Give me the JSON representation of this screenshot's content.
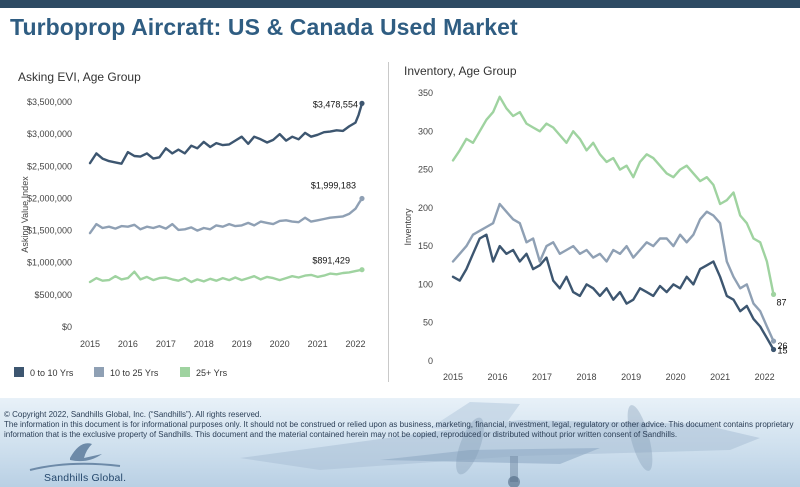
{
  "header": {
    "title": "Turboprop Aircraft:  US & Canada Used Market"
  },
  "left_panel": {
    "title": "Asking EVI, Age Group"
  },
  "right_panel": {
    "title": "Inventory, Age Group"
  },
  "legend": [
    {
      "label": "0 to 10 Yrs",
      "color": "#3d5670"
    },
    {
      "label": "10 to 25 Yrs",
      "color": "#8fa0b4"
    },
    {
      "label": "25+ Yrs",
      "color": "#9fd3a0"
    }
  ],
  "footer": {
    "copyright": "© Copyright 2022, Sandhills Global, Inc. (“Sandhills”). All rights reserved.",
    "disclaimer": "The information in this document is for informational purposes only.  It should not be construed or relied upon as business, marketing, financial, investment, legal, regulatory or other advice. This document contains proprietary information that is the exclusive property of Sandhills. This document and the material contained herein may not be copied, reproduced or distributed without prior written consent of Sandhills.",
    "brand": "Sandhills Global."
  },
  "chart_data": [
    {
      "type": "line",
      "title": "Asking EVI, Age Group",
      "xlabel": "",
      "ylabel": "Asking Value Index",
      "xlim": [
        2015,
        2022.25
      ],
      "ylim": [
        0,
        3500000
      ],
      "x_ticks": [
        "2015",
        "2016",
        "2017",
        "2018",
        "2019",
        "2020",
        "2021",
        "2022"
      ],
      "y_ticks": [
        "$0",
        "$500,000",
        "$1,000,000",
        "$1,500,000",
        "$2,000,000",
        "$2,500,000",
        "$3,000,000",
        "$3,500,000"
      ],
      "y_tick_values": [
        0,
        500000,
        1000000,
        1500000,
        2000000,
        2500000,
        3000000,
        3500000
      ],
      "grid": false,
      "legend_position": "bottom-left",
      "series": [
        {
          "name": "0 to 10 Yrs",
          "color": "#3d5670",
          "x": [
            2015.0,
            2015.17,
            2015.33,
            2015.5,
            2015.67,
            2015.83,
            2016.0,
            2016.17,
            2016.33,
            2016.5,
            2016.67,
            2016.83,
            2017.0,
            2017.17,
            2017.33,
            2017.5,
            2017.67,
            2017.83,
            2018.0,
            2018.17,
            2018.33,
            2018.5,
            2018.67,
            2018.83,
            2019.0,
            2019.17,
            2019.33,
            2019.5,
            2019.67,
            2019.83,
            2020.0,
            2020.17,
            2020.33,
            2020.5,
            2020.67,
            2020.83,
            2021.0,
            2021.17,
            2021.33,
            2021.5,
            2021.67,
            2021.83,
            2022.0,
            2022.08,
            2022.17
          ],
          "values": [
            2550000,
            2700000,
            2620000,
            2580000,
            2560000,
            2540000,
            2720000,
            2660000,
            2650000,
            2700000,
            2620000,
            2640000,
            2780000,
            2700000,
            2760000,
            2700000,
            2820000,
            2780000,
            2880000,
            2800000,
            2860000,
            2830000,
            2840000,
            2900000,
            2960000,
            2850000,
            2960000,
            2920000,
            2870000,
            2910000,
            3000000,
            2900000,
            2960000,
            2920000,
            3020000,
            2960000,
            2990000,
            3030000,
            3040000,
            3060000,
            3050000,
            3120000,
            3180000,
            3300000,
            3478554
          ],
          "end_label": "$3,478,554"
        },
        {
          "name": "10 to 25 Yrs",
          "color": "#8fa0b4",
          "x": [
            2015.0,
            2015.17,
            2015.33,
            2015.5,
            2015.67,
            2015.83,
            2016.0,
            2016.17,
            2016.33,
            2016.5,
            2016.67,
            2016.83,
            2017.0,
            2017.17,
            2017.33,
            2017.5,
            2017.67,
            2017.83,
            2018.0,
            2018.17,
            2018.33,
            2018.5,
            2018.67,
            2018.83,
            2019.0,
            2019.17,
            2019.33,
            2019.5,
            2019.67,
            2019.83,
            2020.0,
            2020.17,
            2020.33,
            2020.5,
            2020.67,
            2020.83,
            2021.0,
            2021.17,
            2021.33,
            2021.5,
            2021.67,
            2021.83,
            2022.0,
            2022.08,
            2022.17
          ],
          "values": [
            1460000,
            1600000,
            1540000,
            1560000,
            1530000,
            1570000,
            1560000,
            1590000,
            1520000,
            1560000,
            1540000,
            1570000,
            1530000,
            1600000,
            1510000,
            1520000,
            1550000,
            1500000,
            1540000,
            1520000,
            1580000,
            1560000,
            1600000,
            1570000,
            1580000,
            1620000,
            1580000,
            1640000,
            1620000,
            1600000,
            1650000,
            1660000,
            1640000,
            1630000,
            1700000,
            1640000,
            1660000,
            1680000,
            1700000,
            1710000,
            1720000,
            1760000,
            1840000,
            1920000,
            1999183
          ],
          "end_label": "$1,999,183"
        },
        {
          "name": "25+ Yrs",
          "color": "#9fd3a0",
          "x": [
            2015.0,
            2015.17,
            2015.33,
            2015.5,
            2015.67,
            2015.83,
            2016.0,
            2016.17,
            2016.33,
            2016.5,
            2016.67,
            2016.83,
            2017.0,
            2017.17,
            2017.33,
            2017.5,
            2017.67,
            2017.83,
            2018.0,
            2018.17,
            2018.33,
            2018.5,
            2018.67,
            2018.83,
            2019.0,
            2019.17,
            2019.33,
            2019.5,
            2019.67,
            2019.83,
            2020.0,
            2020.17,
            2020.33,
            2020.5,
            2020.67,
            2020.83,
            2021.0,
            2021.17,
            2021.33,
            2021.5,
            2021.67,
            2021.83,
            2022.0,
            2022.08,
            2022.17
          ],
          "values": [
            700000,
            760000,
            720000,
            730000,
            790000,
            740000,
            760000,
            860000,
            740000,
            780000,
            730000,
            760000,
            770000,
            740000,
            720000,
            760000,
            700000,
            740000,
            710000,
            750000,
            720000,
            760000,
            730000,
            770000,
            730000,
            760000,
            790000,
            740000,
            780000,
            760000,
            730000,
            760000,
            790000,
            770000,
            800000,
            810000,
            780000,
            800000,
            830000,
            820000,
            840000,
            850000,
            870000,
            880000,
            891429
          ],
          "end_label": "$891,429"
        }
      ]
    },
    {
      "type": "line",
      "title": "Inventory, Age Group",
      "xlabel": "",
      "ylabel": "Inventory",
      "xlim": [
        2015,
        2022.3
      ],
      "ylim": [
        0,
        350
      ],
      "x_ticks": [
        "2015",
        "2016",
        "2017",
        "2018",
        "2019",
        "2020",
        "2021",
        "2022"
      ],
      "y_ticks": [
        "0",
        "50",
        "100",
        "150",
        "200",
        "250",
        "300",
        "350"
      ],
      "y_tick_values": [
        0,
        50,
        100,
        150,
        200,
        250,
        300,
        350
      ],
      "grid": false,
      "series": [
        {
          "name": "0 to 10 Yrs",
          "color": "#3d5670",
          "x": [
            2015.0,
            2015.15,
            2015.3,
            2015.45,
            2015.6,
            2015.75,
            2015.9,
            2016.05,
            2016.2,
            2016.35,
            2016.5,
            2016.65,
            2016.8,
            2016.95,
            2017.1,
            2017.25,
            2017.4,
            2017.55,
            2017.7,
            2017.85,
            2018.0,
            2018.15,
            2018.3,
            2018.45,
            2018.6,
            2018.75,
            2018.9,
            2019.05,
            2019.2,
            2019.35,
            2019.5,
            2019.65,
            2019.8,
            2019.95,
            2020.1,
            2020.25,
            2020.4,
            2020.55,
            2020.7,
            2020.85,
            2021.0,
            2021.15,
            2021.3,
            2021.45,
            2021.6,
            2021.75,
            2021.9,
            2022.05,
            2022.2
          ],
          "values": [
            110,
            105,
            120,
            140,
            160,
            165,
            130,
            150,
            140,
            145,
            130,
            140,
            120,
            125,
            135,
            105,
            95,
            110,
            90,
            85,
            100,
            95,
            85,
            95,
            80,
            90,
            75,
            80,
            95,
            90,
            85,
            98,
            90,
            100,
            95,
            110,
            100,
            120,
            125,
            130,
            110,
            85,
            80,
            65,
            72,
            55,
            45,
            30,
            15
          ],
          "end_label": "15"
        },
        {
          "name": "10 to 25 Yrs",
          "color": "#8fa0b4",
          "x": [
            2015.0,
            2015.15,
            2015.3,
            2015.45,
            2015.6,
            2015.75,
            2015.9,
            2016.05,
            2016.2,
            2016.35,
            2016.5,
            2016.65,
            2016.8,
            2016.95,
            2017.1,
            2017.25,
            2017.4,
            2017.55,
            2017.7,
            2017.85,
            2018.0,
            2018.15,
            2018.3,
            2018.45,
            2018.6,
            2018.75,
            2018.9,
            2019.05,
            2019.2,
            2019.35,
            2019.5,
            2019.65,
            2019.8,
            2019.95,
            2020.1,
            2020.25,
            2020.4,
            2020.55,
            2020.7,
            2020.85,
            2021.0,
            2021.15,
            2021.3,
            2021.45,
            2021.6,
            2021.75,
            2021.9,
            2022.05,
            2022.2
          ],
          "values": [
            130,
            140,
            150,
            165,
            170,
            175,
            180,
            205,
            195,
            185,
            180,
            155,
            160,
            130,
            150,
            155,
            140,
            145,
            150,
            140,
            145,
            135,
            140,
            130,
            145,
            140,
            150,
            135,
            145,
            155,
            150,
            160,
            160,
            150,
            165,
            155,
            165,
            185,
            195,
            190,
            180,
            130,
            110,
            95,
            100,
            75,
            65,
            45,
            26
          ],
          "end_label": "26"
        },
        {
          "name": "25+ Yrs",
          "color": "#9fd3a0",
          "x": [
            2015.0,
            2015.15,
            2015.3,
            2015.45,
            2015.6,
            2015.75,
            2015.9,
            2016.05,
            2016.2,
            2016.35,
            2016.5,
            2016.65,
            2016.8,
            2016.95,
            2017.1,
            2017.25,
            2017.4,
            2017.55,
            2017.7,
            2017.85,
            2018.0,
            2018.15,
            2018.3,
            2018.45,
            2018.6,
            2018.75,
            2018.9,
            2019.05,
            2019.2,
            2019.35,
            2019.5,
            2019.65,
            2019.8,
            2019.95,
            2020.1,
            2020.25,
            2020.4,
            2020.55,
            2020.7,
            2020.85,
            2021.0,
            2021.15,
            2021.3,
            2021.45,
            2021.6,
            2021.75,
            2021.9,
            2022.05,
            2022.2
          ],
          "values": [
            262,
            275,
            290,
            285,
            300,
            315,
            325,
            345,
            330,
            320,
            325,
            310,
            305,
            300,
            310,
            305,
            295,
            285,
            300,
            290,
            275,
            285,
            270,
            260,
            265,
            250,
            255,
            240,
            260,
            270,
            265,
            255,
            245,
            240,
            250,
            255,
            245,
            235,
            240,
            230,
            205,
            210,
            220,
            190,
            180,
            160,
            155,
            130,
            87
          ],
          "end_label": "87"
        }
      ]
    }
  ]
}
